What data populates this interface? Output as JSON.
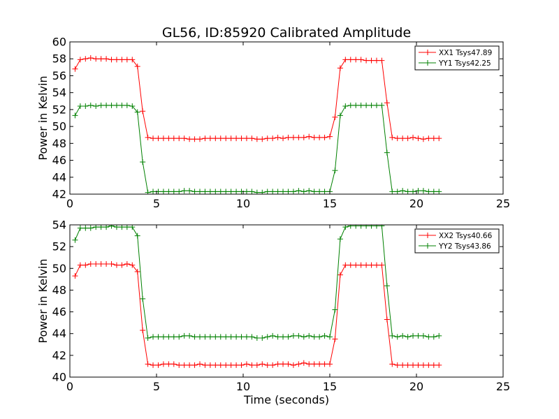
{
  "figure": {
    "title": "GL56, ID:85920 Calibrated Amplitude",
    "xlabel": "Time (seconds)"
  },
  "chart_data": [
    {
      "type": "line",
      "title": "GL56, ID:85920 Calibrated Amplitude",
      "xlabel": "",
      "ylabel": "Power in Kelvin",
      "xlim": [
        0,
        25
      ],
      "ylim": [
        42,
        60
      ],
      "xticks": [
        0,
        5,
        10,
        15,
        20,
        25
      ],
      "yticks": [
        42,
        44,
        46,
        48,
        50,
        52,
        54,
        56,
        58,
        60
      ],
      "grid": false,
      "legend_position": "top-right",
      "x": [
        0.3,
        0.6,
        0.9,
        1.2,
        1.5,
        1.8,
        2.1,
        2.4,
        2.7,
        3.0,
        3.3,
        3.6,
        3.9,
        4.2,
        4.5,
        4.8,
        5.1,
        5.4,
        5.7,
        6.0,
        6.3,
        6.6,
        6.9,
        7.2,
        7.5,
        7.8,
        8.1,
        8.4,
        8.7,
        9.0,
        9.3,
        9.6,
        9.9,
        10.2,
        10.5,
        10.8,
        11.1,
        11.4,
        11.7,
        12.0,
        12.3,
        12.6,
        12.9,
        13.2,
        13.5,
        13.8,
        14.1,
        14.4,
        14.7,
        15.0,
        15.3,
        15.6,
        15.9,
        16.2,
        16.5,
        16.8,
        17.1,
        17.4,
        17.7,
        18.0,
        18.3,
        18.6,
        18.9,
        19.2,
        19.5,
        19.8,
        20.1,
        20.4,
        20.7,
        21.0,
        21.3
      ],
      "series": [
        {
          "name": "XX1 Tsys47.89",
          "color": "#ff0000",
          "values": [
            56.8,
            57.9,
            58.0,
            58.1,
            58.0,
            58.0,
            58.0,
            57.9,
            57.9,
            57.9,
            57.9,
            57.9,
            57.1,
            51.8,
            48.7,
            48.6,
            48.6,
            48.6,
            48.6,
            48.6,
            48.6,
            48.6,
            48.5,
            48.5,
            48.5,
            48.6,
            48.6,
            48.6,
            48.6,
            48.6,
            48.6,
            48.6,
            48.6,
            48.6,
            48.6,
            48.5,
            48.5,
            48.6,
            48.6,
            48.7,
            48.6,
            48.7,
            48.7,
            48.7,
            48.7,
            48.8,
            48.7,
            48.7,
            48.7,
            48.8,
            51.1,
            56.9,
            57.9,
            57.9,
            57.9,
            57.9,
            57.8,
            57.8,
            57.8,
            57.8,
            52.8,
            48.7,
            48.6,
            48.6,
            48.6,
            48.7,
            48.6,
            48.5,
            48.6,
            48.6,
            48.6
          ]
        },
        {
          "name": "YY1 Tsys42.25",
          "color": "#008000",
          "values": [
            51.3,
            52.4,
            52.4,
            52.5,
            52.4,
            52.5,
            52.5,
            52.5,
            52.5,
            52.5,
            52.5,
            52.4,
            51.7,
            45.8,
            42.2,
            42.3,
            42.3,
            42.3,
            42.3,
            42.3,
            42.3,
            42.4,
            42.4,
            42.3,
            42.3,
            42.3,
            42.3,
            42.3,
            42.3,
            42.3,
            42.3,
            42.3,
            42.3,
            42.3,
            42.3,
            42.2,
            42.2,
            42.3,
            42.3,
            42.3,
            42.3,
            42.3,
            42.3,
            42.4,
            42.3,
            42.4,
            42.3,
            42.3,
            42.3,
            42.3,
            44.8,
            51.3,
            52.4,
            52.5,
            52.5,
            52.5,
            52.5,
            52.5,
            52.5,
            52.5,
            46.9,
            42.3,
            42.3,
            42.4,
            42.3,
            42.3,
            42.4,
            42.4,
            42.3,
            42.3,
            42.3
          ]
        }
      ]
    },
    {
      "type": "line",
      "title": "",
      "xlabel": "Time (seconds)",
      "ylabel": "Power in Kelvin",
      "xlim": [
        0,
        25
      ],
      "ylim": [
        40,
        54
      ],
      "xticks": [
        0,
        5,
        10,
        15,
        20,
        25
      ],
      "yticks": [
        40,
        42,
        44,
        46,
        48,
        50,
        52,
        54
      ],
      "grid": false,
      "legend_position": "top-right",
      "x": [
        0.3,
        0.6,
        0.9,
        1.2,
        1.5,
        1.8,
        2.1,
        2.4,
        2.7,
        3.0,
        3.3,
        3.6,
        3.9,
        4.2,
        4.5,
        4.8,
        5.1,
        5.4,
        5.7,
        6.0,
        6.3,
        6.6,
        6.9,
        7.2,
        7.5,
        7.8,
        8.1,
        8.4,
        8.7,
        9.0,
        9.3,
        9.6,
        9.9,
        10.2,
        10.5,
        10.8,
        11.1,
        11.4,
        11.7,
        12.0,
        12.3,
        12.6,
        12.9,
        13.2,
        13.5,
        13.8,
        14.1,
        14.4,
        14.7,
        15.0,
        15.3,
        15.6,
        15.9,
        16.2,
        16.5,
        16.8,
        17.1,
        17.4,
        17.7,
        18.0,
        18.3,
        18.6,
        18.9,
        19.2,
        19.5,
        19.8,
        20.1,
        20.4,
        20.7,
        21.0,
        21.3
      ],
      "series": [
        {
          "name": "XX2 Tsys40.66",
          "color": "#ff0000",
          "values": [
            49.3,
            50.3,
            50.3,
            50.4,
            50.4,
            50.4,
            50.4,
            50.4,
            50.3,
            50.3,
            50.4,
            50.3,
            49.7,
            44.3,
            41.2,
            41.1,
            41.1,
            41.2,
            41.2,
            41.2,
            41.1,
            41.1,
            41.1,
            41.1,
            41.2,
            41.1,
            41.1,
            41.1,
            41.1,
            41.1,
            41.1,
            41.1,
            41.1,
            41.2,
            41.1,
            41.1,
            41.2,
            41.1,
            41.1,
            41.2,
            41.2,
            41.2,
            41.1,
            41.2,
            41.3,
            41.2,
            41.2,
            41.2,
            41.2,
            41.2,
            43.5,
            49.4,
            50.3,
            50.3,
            50.3,
            50.3,
            50.3,
            50.3,
            50.3,
            50.3,
            45.3,
            41.2,
            41.1,
            41.1,
            41.1,
            41.1,
            41.1,
            41.1,
            41.1,
            41.1,
            41.1
          ]
        },
        {
          "name": "YY2 Tsys43.86",
          "color": "#008000",
          "values": [
            52.6,
            53.7,
            53.7,
            53.7,
            53.8,
            53.8,
            53.8,
            53.9,
            53.8,
            53.8,
            53.8,
            53.8,
            53.0,
            47.2,
            43.6,
            43.7,
            43.7,
            43.7,
            43.7,
            43.7,
            43.7,
            43.8,
            43.8,
            43.7,
            43.7,
            43.7,
            43.7,
            43.7,
            43.7,
            43.7,
            43.7,
            43.7,
            43.7,
            43.7,
            43.7,
            43.6,
            43.6,
            43.7,
            43.8,
            43.7,
            43.7,
            43.7,
            43.8,
            43.8,
            43.7,
            43.8,
            43.7,
            43.7,
            43.8,
            43.7,
            46.2,
            52.7,
            53.8,
            53.9,
            53.9,
            53.9,
            53.9,
            53.9,
            53.9,
            53.9,
            48.4,
            43.8,
            43.7,
            43.8,
            43.7,
            43.8,
            43.8,
            43.8,
            43.7,
            43.7,
            43.8
          ]
        }
      ]
    }
  ]
}
